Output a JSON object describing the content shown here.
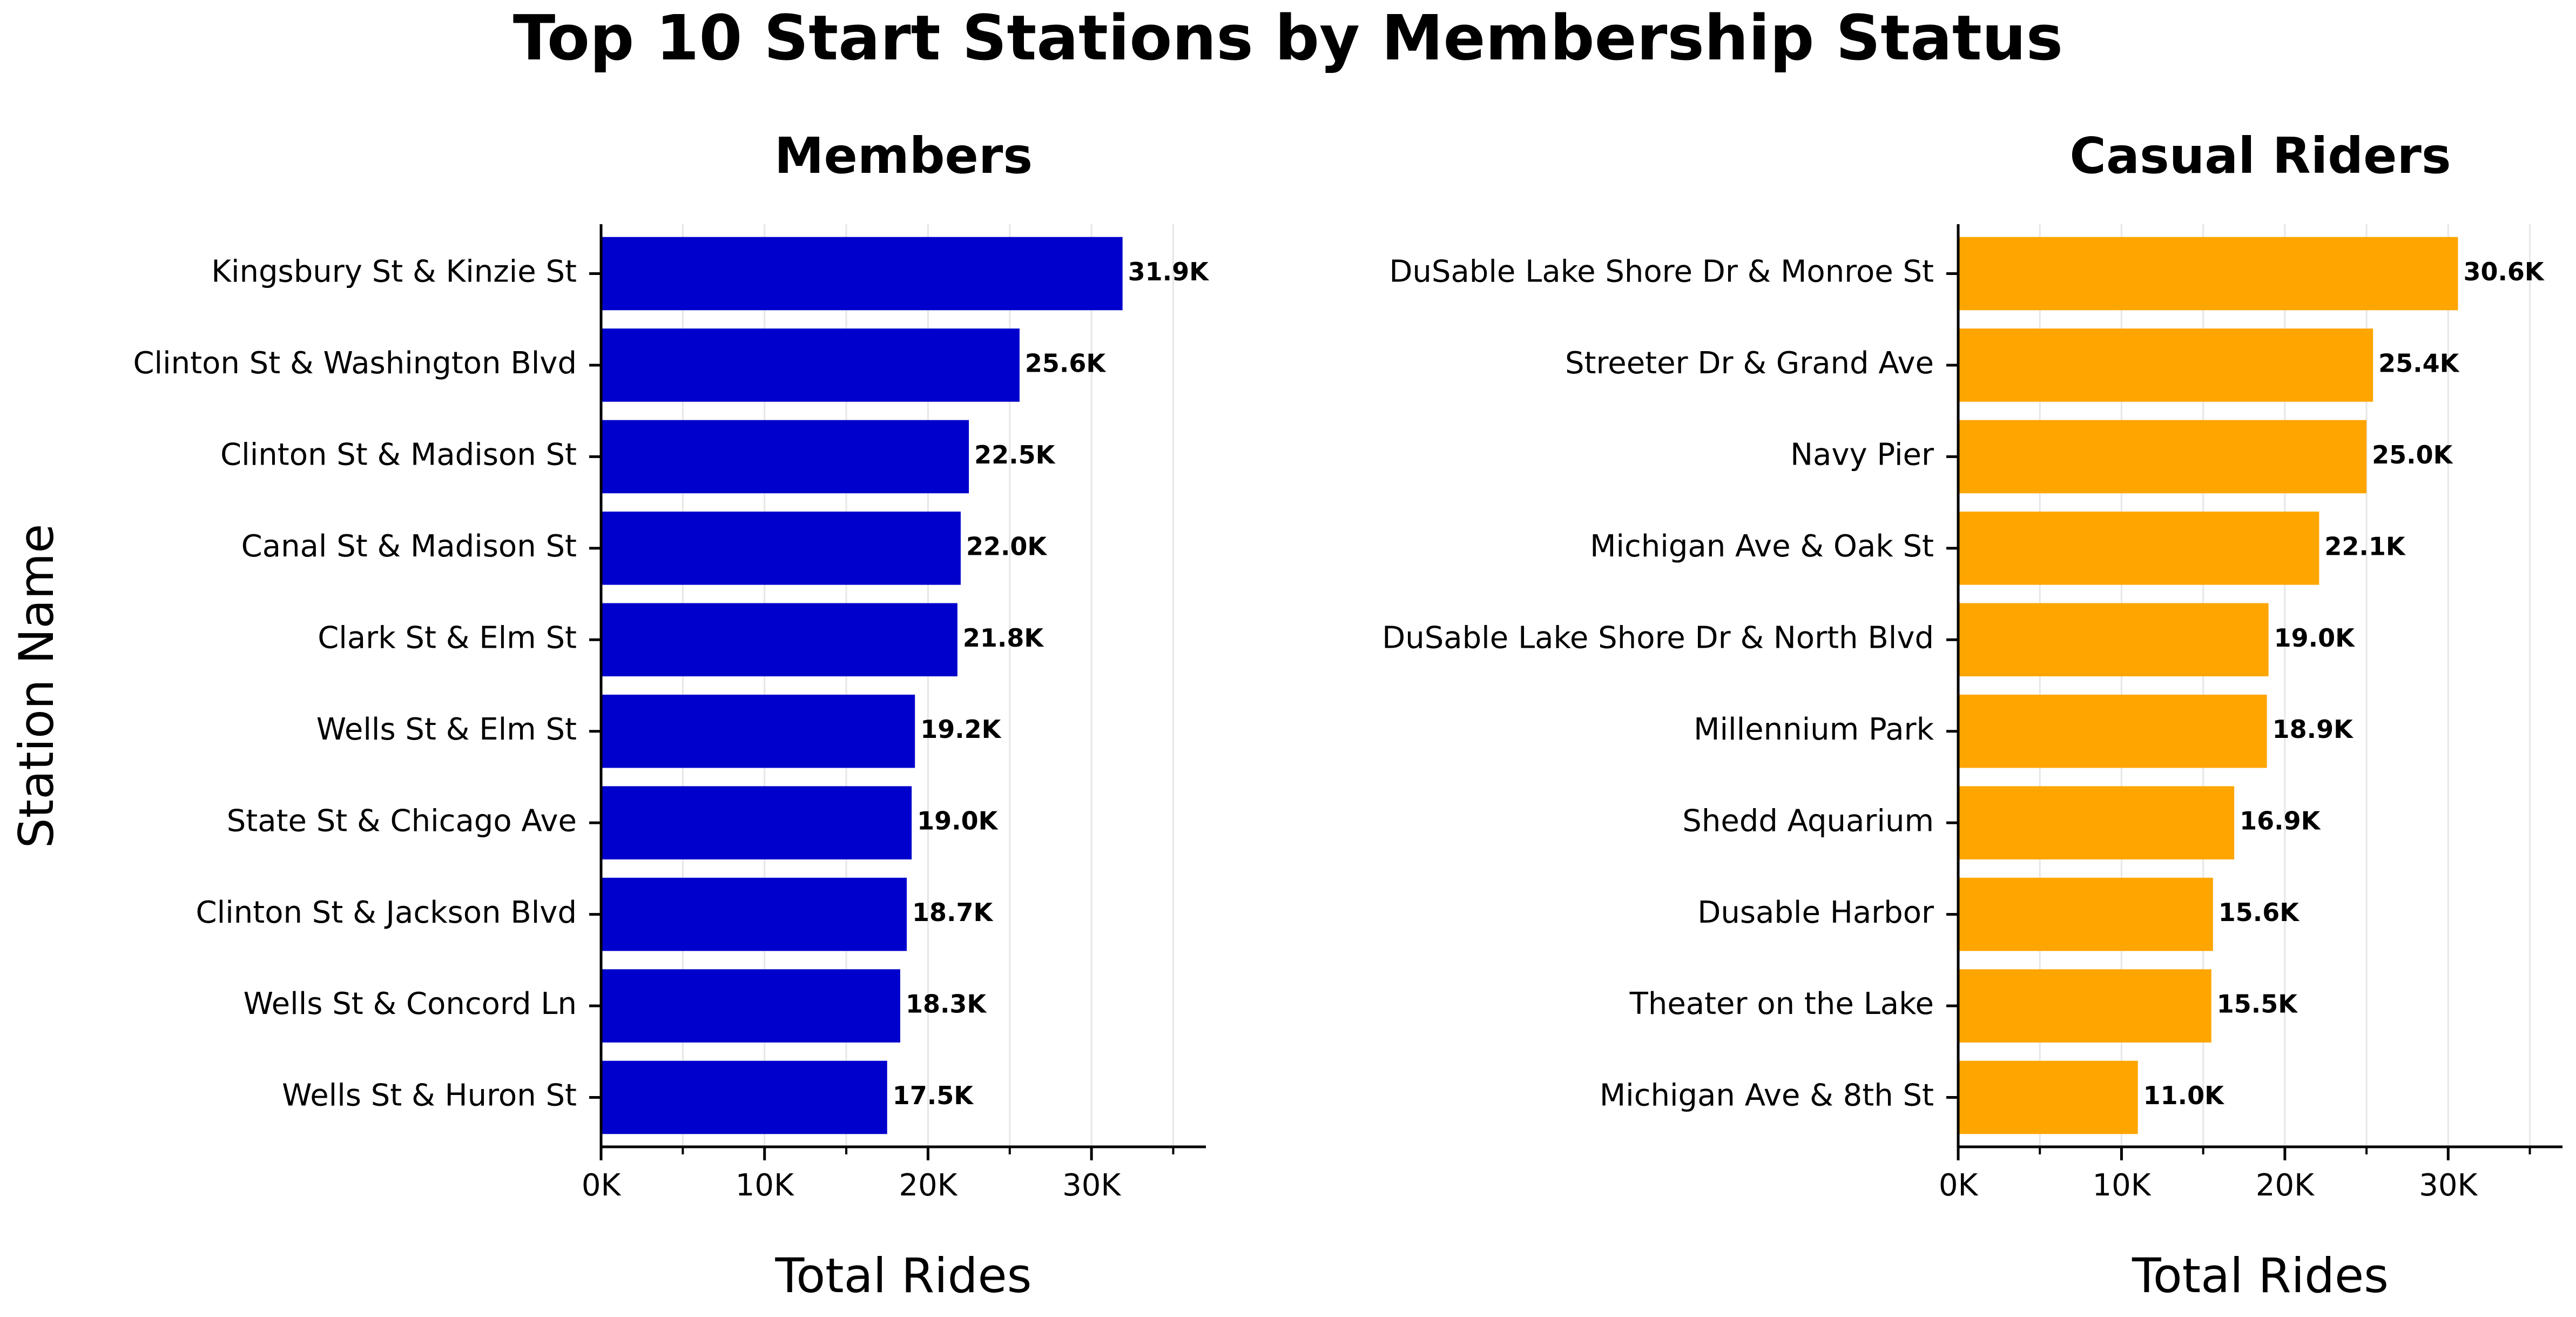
{
  "figure": {
    "title": "Top 10 Start Stations by Membership Status",
    "ylabel": "Station Name"
  },
  "chart_data": [
    {
      "type": "bar",
      "orientation": "horizontal",
      "title": "Members",
      "xlabel": "Total Rides",
      "ylabel": "Station Name",
      "xlim": [
        0,
        37000
      ],
      "xticks": [
        0,
        10000,
        20000,
        30000
      ],
      "xtick_labels": [
        "0K",
        "10K",
        "20K",
        "30K"
      ],
      "grid": "vertical",
      "color": "#0000cc",
      "categories": [
        "Kingsbury St & Kinzie St",
        "Clinton St & Washington Blvd",
        "Clinton St & Madison St",
        "Canal St & Madison St",
        "Clark St & Elm St",
        "Wells St & Elm St",
        "State St & Chicago Ave",
        "Clinton St & Jackson Blvd",
        "Wells St & Concord Ln",
        "Wells St & Huron St"
      ],
      "values": [
        31900,
        25600,
        22500,
        22000,
        21800,
        19200,
        19000,
        18700,
        18300,
        17500
      ],
      "data_labels": [
        "31.9K",
        "25.6K",
        "22.5K",
        "22.0K",
        "21.8K",
        "19.2K",
        "19.0K",
        "18.7K",
        "18.3K",
        "17.5K"
      ]
    },
    {
      "type": "bar",
      "orientation": "horizontal",
      "title": "Casual Riders",
      "xlabel": "Total Rides",
      "ylabel": "",
      "xlim": [
        0,
        37000
      ],
      "xticks": [
        0,
        10000,
        20000,
        30000
      ],
      "xtick_labels": [
        "0K",
        "10K",
        "20K",
        "30K"
      ],
      "grid": "vertical",
      "color": "#ffa500",
      "categories": [
        "DuSable Lake Shore Dr & Monroe St",
        "Streeter Dr & Grand Ave",
        "Navy Pier",
        "Michigan Ave & Oak St",
        "DuSable Lake Shore Dr & North Blvd",
        "Millennium Park",
        "Shedd Aquarium",
        "Dusable Harbor",
        "Theater on the Lake",
        "Michigan Ave & 8th St"
      ],
      "values": [
        30600,
        25400,
        25000,
        22100,
        19000,
        18900,
        16900,
        15600,
        15500,
        11000
      ],
      "data_labels": [
        "30.6K",
        "25.4K",
        "25.0K",
        "22.1K",
        "19.0K",
        "18.9K",
        "16.9K",
        "15.6K",
        "15.5K",
        "11.0K"
      ]
    }
  ]
}
